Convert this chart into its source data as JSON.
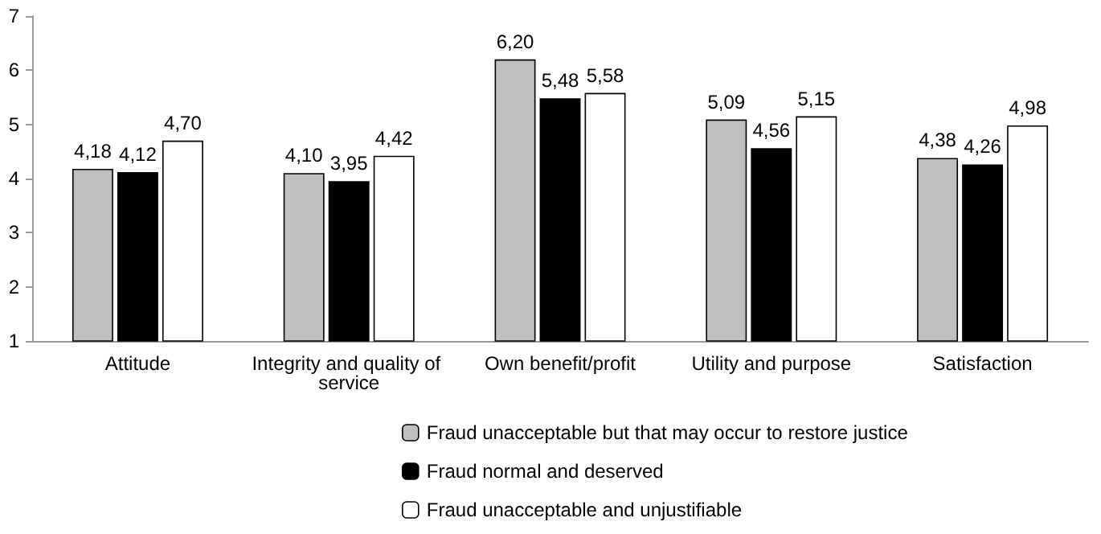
{
  "chart_data": {
    "type": "bar",
    "categories": [
      "Attitude",
      "Integrity and quality of service",
      "Own benefit/profit",
      "Utility and purpose",
      "Satisfaction"
    ],
    "series": [
      {
        "name": "Fraud unacceptable but that may occur to restore justice",
        "color": "#bfbfbf",
        "values": [
          4.18,
          4.1,
          6.2,
          5.09,
          4.38
        ],
        "value_labels": [
          "4,18",
          "4,10",
          "6,20",
          "5,09",
          "4,38"
        ]
      },
      {
        "name": "Fraud normal and deserved",
        "color": "#000000",
        "values": [
          4.12,
          3.95,
          5.48,
          4.56,
          4.26
        ],
        "value_labels": [
          "4,12",
          "3,95",
          "5,48",
          "4,56",
          "4,26"
        ]
      },
      {
        "name": "Fraud unacceptable and unjustifiable",
        "color": "#ffffff",
        "values": [
          4.7,
          4.42,
          5.58,
          5.15,
          4.98
        ],
        "value_labels": [
          "4,70",
          "4,42",
          "5,58",
          "5,15",
          "4,98"
        ]
      }
    ],
    "ylim": [
      1,
      7
    ],
    "yticks": [
      1,
      2,
      3,
      4,
      5,
      6,
      7
    ],
    "grid": false,
    "legend": "bottom"
  }
}
